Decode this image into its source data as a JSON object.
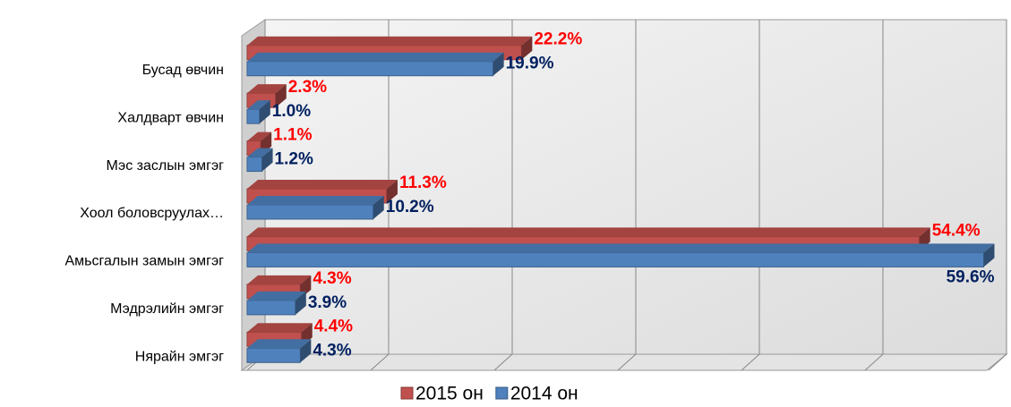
{
  "chart_data": {
    "type": "bar3d_horizontal",
    "categories": [
      "Бусад өвчин",
      "Халдварт өвчин",
      "Мэс заслын эмгэг",
      "Хоол боловсруулах…",
      "Амьсгалын замын эмгэг",
      "Мэдрэлийн эмгэг",
      "Нярайн эмгэг"
    ],
    "series": [
      {
        "name": "2015 он",
        "color": "#c0504d",
        "label_color": "#ff0000",
        "values": [
          22.2,
          2.3,
          1.1,
          11.3,
          54.4,
          4.3,
          4.4
        ],
        "value_labels": [
          "22.2%",
          "2.3%",
          "1.1%",
          "11.3%",
          "54.4%",
          "4.3%",
          "4.4%"
        ]
      },
      {
        "name": "2014 он",
        "color": "#4f81bd",
        "label_color": "#002060",
        "values": [
          19.9,
          1.0,
          1.2,
          10.2,
          59.6,
          3.9,
          4.3
        ],
        "value_labels": [
          "19.9%",
          "1.0%",
          "1.2%",
          "10.2%",
          "59.6%",
          "3.9%",
          "4.3%"
        ]
      }
    ],
    "xlim": [
      0,
      60
    ],
    "xticks": [
      0,
      10,
      20,
      30,
      40,
      50,
      60
    ],
    "grid": true
  }
}
